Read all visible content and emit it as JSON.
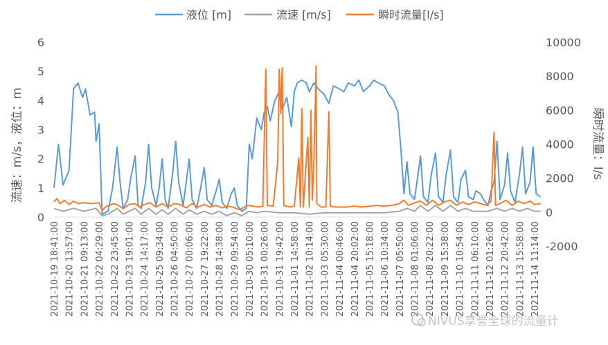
{
  "chart_data": {
    "type": "line",
    "legend": {
      "placement": "top",
      "entries": [
        "液位 [m]",
        "流速 [m/s]",
        "瞬时流量[l/s]"
      ]
    },
    "left_axis": {
      "label": "流速：m/s，液位：m",
      "ylim": [
        0,
        6
      ],
      "ticks": [
        "0",
        "1",
        "2",
        "3",
        "4",
        "5",
        "6"
      ]
    },
    "right_axis": {
      "label": "瞬时流量：l/s",
      "ylim": [
        -2000,
        10000
      ],
      "ticks": [
        "-2000",
        "0",
        "2000",
        "4000",
        "6000",
        "8000",
        "10000"
      ]
    },
    "x_tick_labels": [
      "2021-10-19 18:41:00",
      "2021-10-20 13:57:00",
      "2021-10-21 09:13:00",
      "2021-10-22 04:29:00",
      "2021-10-22 23:45:00",
      "2021-10-23 19:01:00",
      "2021-10-24 14:17:00",
      "2021-10-25 09:34:00",
      "2021-10-26 04:50:00",
      "2021-10-27 00:06:00",
      "2021-10-27 19:22:00",
      "2021-10-28 14:38:00",
      "2021-10-29 09:54:00",
      "2021-10-30 05:10:00",
      "2021-10-31 00:26:00",
      "2021-10-31 19:42:00",
      "2021-11-01 14:58:00",
      "2021-11-02 10:14:00",
      "2021-11-03 05:30:00",
      "2021-11-04 00:46:00",
      "2021-11-04 20:02:00",
      "2021-11-05 15:18:00",
      "2021-11-06 10:34:00",
      "2021-11-07 05:50:00",
      "2021-11-08 01:06:00",
      "2021-11-08 20:22:00",
      "2021-11-09 15:38:00",
      "2021-11-10 10:54:00",
      "2021-11-11 06:10:00",
      "2021-11-12 01:26:00",
      "2021-11-12 20:42:00",
      "2021-11-13 15:58:00",
      "2021-11-14 11:14:00"
    ],
    "grid": false,
    "series": [
      {
        "name": "液位 [m]",
        "axis": "left",
        "color": "#5B9BD5",
        "points": [
          [
            0,
            1.0
          ],
          [
            0.3,
            2.5
          ],
          [
            0.6,
            1.1
          ],
          [
            1.0,
            1.6
          ],
          [
            1.3,
            4.4
          ],
          [
            1.6,
            4.6
          ],
          [
            1.9,
            4.1
          ],
          [
            2.1,
            4.4
          ],
          [
            2.4,
            3.5
          ],
          [
            2.7,
            3.6
          ],
          [
            2.8,
            2.6
          ],
          [
            3.0,
            3.2
          ],
          [
            3.2,
            0.1
          ],
          [
            3.6,
            0.2
          ],
          [
            3.9,
            1.0
          ],
          [
            4.2,
            2.4
          ],
          [
            4.4,
            1.2
          ],
          [
            4.6,
            0.3
          ],
          [
            4.9,
            0.6
          ],
          [
            5.1,
            1.3
          ],
          [
            5.4,
            2.1
          ],
          [
            5.6,
            0.4
          ],
          [
            5.8,
            0.3
          ],
          [
            6.1,
            1.2
          ],
          [
            6.3,
            2.5
          ],
          [
            6.5,
            1.0
          ],
          [
            6.8,
            0.4
          ],
          [
            7.0,
            1.0
          ],
          [
            7.2,
            2.0
          ],
          [
            7.4,
            0.6
          ],
          [
            7.6,
            0.3
          ],
          [
            7.9,
            1.5
          ],
          [
            8.1,
            2.6
          ],
          [
            8.3,
            1.2
          ],
          [
            8.6,
            0.4
          ],
          [
            8.8,
            1.2
          ],
          [
            9.0,
            2.0
          ],
          [
            9.2,
            0.6
          ],
          [
            9.5,
            0.3
          ],
          [
            9.8,
            1.1
          ],
          [
            10.0,
            1.7
          ],
          [
            10.2,
            0.6
          ],
          [
            10.5,
            0.4
          ],
          [
            10.8,
            0.9
          ],
          [
            11.0,
            1.3
          ],
          [
            11.2,
            0.5
          ],
          [
            11.5,
            0.3
          ],
          [
            11.8,
            0.8
          ],
          [
            12.0,
            1.0
          ],
          [
            12.2,
            0.4
          ],
          [
            12.5,
            0.2
          ],
          [
            12.8,
            0.3
          ],
          [
            13.0,
            2.5
          ],
          [
            13.2,
            2.0
          ],
          [
            13.5,
            3.4
          ],
          [
            13.8,
            3.0
          ],
          [
            14.0,
            3.6
          ],
          [
            14.2,
            3.8
          ],
          [
            14.4,
            3.3
          ],
          [
            14.7,
            4.0
          ],
          [
            15.0,
            4.3
          ],
          [
            15.2,
            3.7
          ],
          [
            15.5,
            4.1
          ],
          [
            15.8,
            3.1
          ],
          [
            16.0,
            4.3
          ],
          [
            16.2,
            4.6
          ],
          [
            16.5,
            4.7
          ],
          [
            16.8,
            4.6
          ],
          [
            17.0,
            4.3
          ],
          [
            17.3,
            4.6
          ],
          [
            17.6,
            4.4
          ],
          [
            18.0,
            4.2
          ],
          [
            18.3,
            3.9
          ],
          [
            18.6,
            4.5
          ],
          [
            19.0,
            4.4
          ],
          [
            19.3,
            4.3
          ],
          [
            19.6,
            4.6
          ],
          [
            20.0,
            4.5
          ],
          [
            20.3,
            4.7
          ],
          [
            20.6,
            4.3
          ],
          [
            21.0,
            4.5
          ],
          [
            21.3,
            4.7
          ],
          [
            21.6,
            4.6
          ],
          [
            22.0,
            4.5
          ],
          [
            22.3,
            4.2
          ],
          [
            22.6,
            4.0
          ],
          [
            22.9,
            3.6
          ],
          [
            23.1,
            2.3
          ],
          [
            23.3,
            0.8
          ],
          [
            23.5,
            1.9
          ],
          [
            23.7,
            0.8
          ],
          [
            24.0,
            0.6
          ],
          [
            24.2,
            1.3
          ],
          [
            24.4,
            2.1
          ],
          [
            24.6,
            0.7
          ],
          [
            24.9,
            0.5
          ],
          [
            25.1,
            1.4
          ],
          [
            25.4,
            2.2
          ],
          [
            25.6,
            0.7
          ],
          [
            25.9,
            0.5
          ],
          [
            26.1,
            1.4
          ],
          [
            26.4,
            2.3
          ],
          [
            26.6,
            0.7
          ],
          [
            26.9,
            0.5
          ],
          [
            27.1,
            1.3
          ],
          [
            27.4,
            1.6
          ],
          [
            27.6,
            0.7
          ],
          [
            27.9,
            0.6
          ],
          [
            28.1,
            0.9
          ],
          [
            28.4,
            0.8
          ],
          [
            28.6,
            0.6
          ],
          [
            28.9,
            0.4
          ],
          [
            29.1,
            0.9
          ],
          [
            29.3,
            1.2
          ],
          [
            29.5,
            2.6
          ],
          [
            29.7,
            0.6
          ],
          [
            30.0,
            1.1
          ],
          [
            30.2,
            2.2
          ],
          [
            30.4,
            0.9
          ],
          [
            30.7,
            0.5
          ],
          [
            31.0,
            1.5
          ],
          [
            31.2,
            2.4
          ],
          [
            31.4,
            0.8
          ],
          [
            31.7,
            1.2
          ],
          [
            31.9,
            2.4
          ],
          [
            32.1,
            0.8
          ],
          [
            32.4,
            0.7
          ]
        ]
      },
      {
        "name": "流速 [m/s]",
        "axis": "left",
        "color": "#A5A5A5",
        "points": [
          [
            0,
            0.3
          ],
          [
            0.6,
            0.2
          ],
          [
            1.3,
            0.3
          ],
          [
            2.0,
            0.2
          ],
          [
            2.8,
            0.3
          ],
          [
            3.2,
            0.05
          ],
          [
            3.6,
            0.1
          ],
          [
            4.2,
            0.3
          ],
          [
            4.6,
            0.1
          ],
          [
            5.4,
            0.3
          ],
          [
            5.8,
            0.1
          ],
          [
            6.3,
            0.3
          ],
          [
            6.8,
            0.1
          ],
          [
            7.2,
            0.25
          ],
          [
            7.6,
            0.1
          ],
          [
            8.1,
            0.3
          ],
          [
            8.6,
            0.1
          ],
          [
            9.0,
            0.25
          ],
          [
            9.5,
            0.1
          ],
          [
            10.0,
            0.2
          ],
          [
            10.5,
            0.1
          ],
          [
            11.0,
            0.2
          ],
          [
            11.5,
            0.05
          ],
          [
            12.0,
            0.15
          ],
          [
            12.5,
            0.05
          ],
          [
            13.0,
            0.2
          ],
          [
            13.5,
            0.15
          ],
          [
            14.0,
            0.2
          ],
          [
            15.0,
            0.15
          ],
          [
            16.0,
            0.15
          ],
          [
            17.0,
            0.1
          ],
          [
            18.0,
            0.15
          ],
          [
            19.0,
            0.15
          ],
          [
            20.0,
            0.15
          ],
          [
            21.0,
            0.15
          ],
          [
            22.0,
            0.15
          ],
          [
            23.0,
            0.2
          ],
          [
            23.5,
            0.3
          ],
          [
            24.0,
            0.2
          ],
          [
            24.4,
            0.4
          ],
          [
            24.9,
            0.2
          ],
          [
            25.4,
            0.4
          ],
          [
            25.9,
            0.2
          ],
          [
            26.4,
            0.4
          ],
          [
            26.9,
            0.2
          ],
          [
            27.4,
            0.3
          ],
          [
            27.9,
            0.2
          ],
          [
            28.4,
            0.2
          ],
          [
            28.9,
            0.2
          ],
          [
            29.5,
            0.3
          ],
          [
            30.0,
            0.2
          ],
          [
            30.5,
            0.3
          ],
          [
            31.0,
            0.2
          ],
          [
            31.5,
            0.3
          ],
          [
            32.0,
            0.2
          ],
          [
            32.4,
            0.2
          ]
        ]
      },
      {
        "name": "瞬时流量[l/s]",
        "axis": "right",
        "color": "#ED7D31",
        "points": [
          [
            0,
            600
          ],
          [
            0.2,
            800
          ],
          [
            0.4,
            500
          ],
          [
            0.7,
            700
          ],
          [
            1.0,
            450
          ],
          [
            1.3,
            650
          ],
          [
            1.6,
            500
          ],
          [
            2.0,
            550
          ],
          [
            2.5,
            500
          ],
          [
            3.0,
            550
          ],
          [
            3.2,
            100
          ],
          [
            3.5,
            350
          ],
          [
            4.0,
            500
          ],
          [
            4.3,
            400
          ],
          [
            4.6,
            200
          ],
          [
            5.0,
            450
          ],
          [
            5.4,
            500
          ],
          [
            5.7,
            300
          ],
          [
            6.0,
            450
          ],
          [
            6.4,
            550
          ],
          [
            6.8,
            300
          ],
          [
            7.2,
            500
          ],
          [
            7.6,
            300
          ],
          [
            8.0,
            500
          ],
          [
            8.4,
            450
          ],
          [
            8.8,
            250
          ],
          [
            9.2,
            500
          ],
          [
            9.6,
            300
          ],
          [
            10.0,
            450
          ],
          [
            10.4,
            300
          ],
          [
            10.8,
            400
          ],
          [
            11.2,
            250
          ],
          [
            11.5,
            350
          ],
          [
            11.9,
            300
          ],
          [
            12.3,
            150
          ],
          [
            12.6,
            250
          ],
          [
            12.9,
            400
          ],
          [
            13.3,
            350
          ],
          [
            13.6,
            300
          ],
          [
            13.9,
            350
          ],
          [
            14.1,
            8400
          ],
          [
            14.2,
            400
          ],
          [
            14.6,
            350
          ],
          [
            14.9,
            3000
          ],
          [
            15.0,
            8400
          ],
          [
            15.1,
            5800
          ],
          [
            15.2,
            8500
          ],
          [
            15.3,
            400
          ],
          [
            15.7,
            300
          ],
          [
            16.0,
            350
          ],
          [
            16.3,
            3200
          ],
          [
            16.4,
            300
          ],
          [
            16.5,
            6100
          ],
          [
            16.6,
            300
          ],
          [
            16.9,
            4400
          ],
          [
            17.0,
            300
          ],
          [
            17.1,
            6000
          ],
          [
            17.2,
            700
          ],
          [
            17.3,
            2900
          ],
          [
            17.4,
            6400
          ],
          [
            17.45,
            8600
          ],
          [
            17.5,
            500
          ],
          [
            17.8,
            300
          ],
          [
            18.1,
            300
          ],
          [
            18.3,
            5900
          ],
          [
            18.4,
            350
          ],
          [
            18.8,
            300
          ],
          [
            19.5,
            300
          ],
          [
            20.0,
            350
          ],
          [
            20.5,
            300
          ],
          [
            21.0,
            350
          ],
          [
            21.5,
            400
          ],
          [
            22.0,
            350
          ],
          [
            22.5,
            400
          ],
          [
            23.0,
            500
          ],
          [
            23.3,
            700
          ],
          [
            23.6,
            400
          ],
          [
            24.0,
            550
          ],
          [
            24.4,
            650
          ],
          [
            24.8,
            400
          ],
          [
            25.2,
            700
          ],
          [
            25.6,
            400
          ],
          [
            26.0,
            600
          ],
          [
            26.4,
            700
          ],
          [
            26.8,
            400
          ],
          [
            27.2,
            600
          ],
          [
            27.6,
            450
          ],
          [
            28.0,
            600
          ],
          [
            28.4,
            500
          ],
          [
            28.8,
            400
          ],
          [
            29.1,
            650
          ],
          [
            29.3,
            4700
          ],
          [
            29.4,
            400
          ],
          [
            29.7,
            500
          ],
          [
            30.1,
            700
          ],
          [
            30.5,
            400
          ],
          [
            30.9,
            650
          ],
          [
            31.3,
            500
          ],
          [
            31.7,
            650
          ],
          [
            32.0,
            450
          ],
          [
            32.4,
            500
          ]
        ]
      }
    ]
  },
  "watermark": "NIVUS享誉全球的流量计"
}
